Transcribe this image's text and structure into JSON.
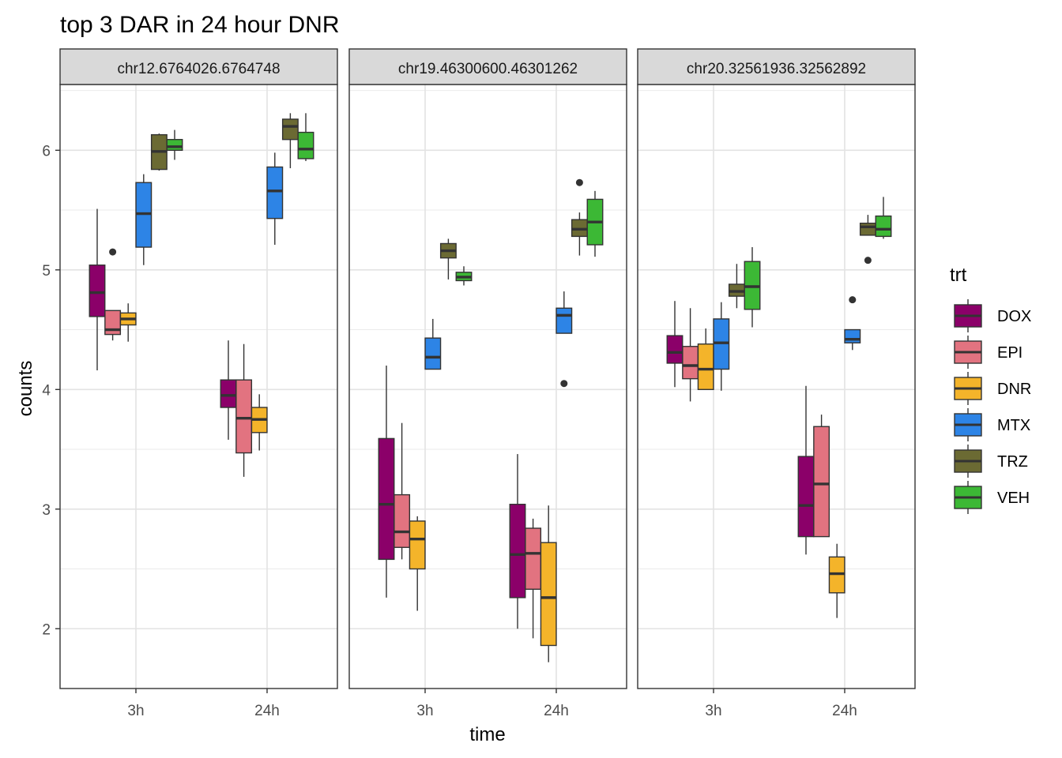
{
  "chart_data": {
    "type": "boxplot",
    "title": "top 3 DAR in 24 hour DNR",
    "xlabel": "time",
    "ylabel": "counts",
    "ylim": [
      1.5,
      6.55
    ],
    "yticks": [
      2,
      3,
      4,
      5,
      6
    ],
    "categories": [
      "3h",
      "24h"
    ],
    "grid": true,
    "legend": {
      "title": "trt",
      "position": "right",
      "entries": [
        "DOX",
        "EPI",
        "DNR",
        "MTX",
        "TRZ",
        "VEH"
      ]
    },
    "colors": {
      "DOX": "#8b0069",
      "EPI": "#e27380",
      "DNR": "#f4b42a",
      "MTX": "#2d84e6",
      "TRZ": "#6b6a33",
      "VEH": "#3cb835"
    },
    "panels": [
      {
        "label": "chr12.6764026.6764748",
        "groups": [
          {
            "time": "3h",
            "boxes": [
              {
                "trt": "DOX",
                "min": 4.16,
                "q1": 4.61,
                "median": 4.81,
                "q3": 5.04,
                "max": 5.51,
                "outliers": []
              },
              {
                "trt": "EPI",
                "min": 4.41,
                "q1": 4.46,
                "median": 4.5,
                "q3": 4.66,
                "max": 4.66,
                "outliers": [
                  5.15
                ]
              },
              {
                "trt": "DNR",
                "min": 4.4,
                "q1": 4.54,
                "median": 4.59,
                "q3": 4.64,
                "max": 4.72,
                "outliers": []
              },
              {
                "trt": "MTX",
                "min": 5.04,
                "q1": 5.19,
                "median": 5.47,
                "q3": 5.73,
                "max": 5.8,
                "outliers": []
              },
              {
                "trt": "TRZ",
                "min": 5.83,
                "q1": 5.84,
                "median": 5.99,
                "q3": 6.13,
                "max": 6.14,
                "outliers": []
              },
              {
                "trt": "VEH",
                "min": 5.92,
                "q1": 6.0,
                "median": 6.03,
                "q3": 6.09,
                "max": 6.17,
                "outliers": []
              }
            ]
          },
          {
            "time": "24h",
            "boxes": [
              {
                "trt": "DOX",
                "min": 3.58,
                "q1": 3.85,
                "median": 3.95,
                "q3": 4.08,
                "max": 4.41,
                "outliers": []
              },
              {
                "trt": "EPI",
                "min": 3.27,
                "q1": 3.47,
                "median": 3.76,
                "q3": 4.08,
                "max": 4.38,
                "outliers": []
              },
              {
                "trt": "DNR",
                "min": 3.49,
                "q1": 3.64,
                "median": 3.75,
                "q3": 3.85,
                "max": 3.96,
                "outliers": []
              },
              {
                "trt": "MTX",
                "min": 5.21,
                "q1": 5.43,
                "median": 5.66,
                "q3": 5.86,
                "max": 5.98,
                "outliers": []
              },
              {
                "trt": "TRZ",
                "min": 5.85,
                "q1": 6.09,
                "median": 6.2,
                "q3": 6.26,
                "max": 6.31,
                "outliers": []
              },
              {
                "trt": "VEH",
                "min": 5.91,
                "q1": 5.93,
                "median": 6.01,
                "q3": 6.15,
                "max": 6.31,
                "outliers": []
              }
            ]
          }
        ]
      },
      {
        "label": "chr19.46300600.46301262",
        "groups": [
          {
            "time": "3h",
            "boxes": [
              {
                "trt": "DOX",
                "min": 2.26,
                "q1": 2.58,
                "median": 3.04,
                "q3": 3.59,
                "max": 4.2,
                "outliers": []
              },
              {
                "trt": "EPI",
                "min": 2.58,
                "q1": 2.68,
                "median": 2.81,
                "q3": 3.12,
                "max": 3.72,
                "outliers": []
              },
              {
                "trt": "DNR",
                "min": 2.15,
                "q1": 2.5,
                "median": 2.75,
                "q3": 2.9,
                "max": 2.94,
                "outliers": []
              },
              {
                "trt": "MTX",
                "min": 4.17,
                "q1": 4.17,
                "median": 4.27,
                "q3": 4.43,
                "max": 4.59,
                "outliers": []
              },
              {
                "trt": "TRZ",
                "min": 4.92,
                "q1": 5.1,
                "median": 5.16,
                "q3": 5.22,
                "max": 5.26,
                "outliers": []
              },
              {
                "trt": "VEH",
                "min": 4.87,
                "q1": 4.91,
                "median": 4.94,
                "q3": 4.98,
                "max": 5.03,
                "outliers": []
              }
            ]
          },
          {
            "time": "24h",
            "boxes": [
              {
                "trt": "DOX",
                "min": 2.0,
                "q1": 2.26,
                "median": 2.62,
                "q3": 3.04,
                "max": 3.46,
                "outliers": []
              },
              {
                "trt": "EPI",
                "min": 1.92,
                "q1": 2.33,
                "median": 2.63,
                "q3": 2.84,
                "max": 2.92,
                "outliers": []
              },
              {
                "trt": "DNR",
                "min": 1.72,
                "q1": 1.86,
                "median": 2.26,
                "q3": 2.72,
                "max": 3.03,
                "outliers": []
              },
              {
                "trt": "MTX",
                "min": 4.47,
                "q1": 4.47,
                "median": 4.62,
                "q3": 4.68,
                "max": 4.82,
                "outliers": [
                  4.05
                ]
              },
              {
                "trt": "TRZ",
                "min": 5.12,
                "q1": 5.28,
                "median": 5.34,
                "q3": 5.42,
                "max": 5.48,
                "outliers": [
                  5.73
                ]
              },
              {
                "trt": "VEH",
                "min": 5.11,
                "q1": 5.21,
                "median": 5.4,
                "q3": 5.59,
                "max": 5.66,
                "outliers": []
              }
            ]
          }
        ]
      },
      {
        "label": "chr20.32561936.32562892",
        "groups": [
          {
            "time": "3h",
            "boxes": [
              {
                "trt": "DOX",
                "min": 4.02,
                "q1": 4.22,
                "median": 4.31,
                "q3": 4.45,
                "max": 4.74,
                "outliers": []
              },
              {
                "trt": "EPI",
                "min": 3.9,
                "q1": 4.09,
                "median": 4.2,
                "q3": 4.36,
                "max": 4.68,
                "outliers": []
              },
              {
                "trt": "DNR",
                "min": 4.0,
                "q1": 4.0,
                "median": 4.17,
                "q3": 4.38,
                "max": 4.51,
                "outliers": []
              },
              {
                "trt": "MTX",
                "min": 3.99,
                "q1": 4.17,
                "median": 4.39,
                "q3": 4.59,
                "max": 4.73,
                "outliers": []
              },
              {
                "trt": "TRZ",
                "min": 4.68,
                "q1": 4.78,
                "median": 4.82,
                "q3": 4.88,
                "max": 5.05,
                "outliers": []
              },
              {
                "trt": "VEH",
                "min": 4.52,
                "q1": 4.67,
                "median": 4.86,
                "q3": 5.07,
                "max": 5.19,
                "outliers": []
              }
            ]
          },
          {
            "time": "24h",
            "boxes": [
              {
                "trt": "DOX",
                "min": 2.62,
                "q1": 2.77,
                "median": 3.03,
                "q3": 3.44,
                "max": 4.03,
                "outliers": []
              },
              {
                "trt": "EPI",
                "min": 2.77,
                "q1": 2.77,
                "median": 3.21,
                "q3": 3.69,
                "max": 3.79,
                "outliers": []
              },
              {
                "trt": "DNR",
                "min": 2.09,
                "q1": 2.3,
                "median": 2.46,
                "q3": 2.6,
                "max": 2.71,
                "outliers": []
              },
              {
                "trt": "MTX",
                "min": 4.33,
                "q1": 4.39,
                "median": 4.42,
                "q3": 4.5,
                "max": 4.5,
                "outliers": [
                  4.75
                ]
              },
              {
                "trt": "TRZ",
                "min": 5.29,
                "q1": 5.29,
                "median": 5.36,
                "q3": 5.39,
                "max": 5.46,
                "outliers": [
                  5.08
                ]
              },
              {
                "trt": "VEH",
                "min": 5.26,
                "q1": 5.28,
                "median": 5.34,
                "q3": 5.45,
                "max": 5.61,
                "outliers": []
              }
            ]
          }
        ]
      }
    ]
  }
}
